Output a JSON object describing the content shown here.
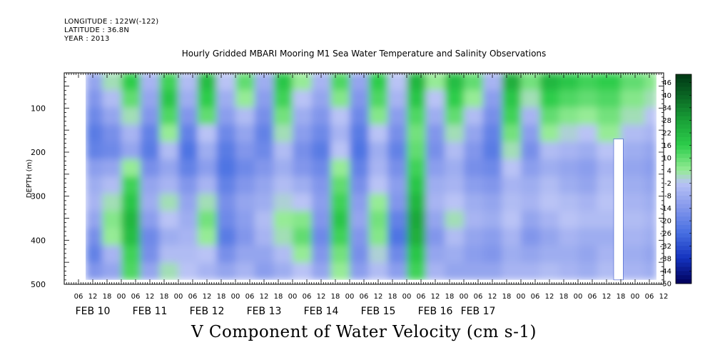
{
  "header": {
    "longitude": "LONGITUDE : 122W(-122)",
    "latitude": "LATITUDE : 36.8N",
    "year": "YEAR : 2013"
  },
  "chart_data": {
    "type": "heatmap",
    "title": "Hourly Gridded MBARI Mooring M1 Sea Water Temperature and Salinity Observations",
    "xlabel": "V Component of Water Velocity (cm s-1)",
    "ylabel": "DEPTH (m)",
    "y_reversed": true,
    "ylim": [
      500,
      20
    ],
    "y_ticks": [
      100,
      200,
      300,
      400,
      500
    ],
    "data_depth_range": [
      20,
      490
    ],
    "x_hours_range": [
      0,
      252
    ],
    "data_hours_range": [
      9,
      249
    ],
    "x_hour_ticks": [
      "06",
      "12",
      "18",
      "00",
      "06",
      "12",
      "18",
      "00",
      "06",
      "12",
      "18",
      "00",
      "06",
      "12",
      "18",
      "00",
      "06",
      "12",
      "18",
      "00",
      "06",
      "12",
      "18",
      "00",
      "06",
      "12",
      "18",
      "00",
      "06",
      "12",
      "18",
      "00",
      "06",
      "12",
      "18",
      "00",
      "06",
      "12",
      "18",
      "00",
      "06",
      "12"
    ],
    "x_day_labels": [
      "FEB 10",
      "FEB 11",
      "FEB 12",
      "FEB 13",
      "FEB 14",
      "FEB 15",
      "FEB 16",
      "FEB 17"
    ],
    "colorbar": {
      "labels": [
        "46",
        "40",
        "34",
        "28",
        "22",
        "16",
        "10",
        "4",
        "-2",
        "-8",
        "-14",
        "-20",
        "-26",
        "-32",
        "-38",
        "-44",
        "-50"
      ],
      "min": -50,
      "max": 50
    },
    "gaps": [
      {
        "type": "column",
        "hour_start": 231,
        "hour_end": 235,
        "depth_top": 170,
        "depth_bottom": 490
      }
    ],
    "columns": [
      {
        "hour": 12,
        "values": [
          -10,
          -14,
          -18,
          -22,
          -20,
          -12,
          -8,
          -6,
          -10,
          -16,
          -20,
          -14
        ]
      },
      {
        "hour": 20,
        "values": [
          2,
          -4,
          -10,
          -16,
          -18,
          -10,
          -4,
          2,
          6,
          4,
          -6,
          -10
        ]
      },
      {
        "hour": 28,
        "values": [
          16,
          10,
          2,
          -6,
          -10,
          4,
          14,
          18,
          22,
          20,
          14,
          12
        ]
      },
      {
        "hour": 36,
        "values": [
          -6,
          -10,
          -14,
          -20,
          -22,
          -16,
          -10,
          -8,
          -12,
          -18,
          -16,
          -10
        ]
      },
      {
        "hour": 44,
        "values": [
          14,
          18,
          12,
          4,
          -4,
          -10,
          -6,
          2,
          -2,
          -8,
          -4,
          2
        ]
      },
      {
        "hour": 52,
        "values": [
          -4,
          -8,
          -14,
          -20,
          -24,
          -20,
          -14,
          -10,
          -8,
          -6,
          -4,
          -2
        ]
      },
      {
        "hour": 60,
        "values": [
          20,
          16,
          10,
          -2,
          -8,
          -12,
          -6,
          2,
          8,
          4,
          -2,
          -6
        ]
      },
      {
        "hour": 68,
        "values": [
          -2,
          -8,
          -12,
          -18,
          -22,
          -24,
          -20,
          -16,
          -18,
          -22,
          -16,
          -10
        ]
      },
      {
        "hour": 76,
        "values": [
          10,
          4,
          -4,
          -10,
          -14,
          -18,
          -14,
          -10,
          -12,
          -14,
          -10,
          -6
        ]
      },
      {
        "hour": 84,
        "values": [
          -8,
          -12,
          -16,
          -20,
          -18,
          -14,
          -10,
          -8,
          -4,
          -6,
          -10,
          -12
        ]
      },
      {
        "hour": 92,
        "values": [
          18,
          14,
          8,
          2,
          -4,
          -8,
          -4,
          0,
          4,
          2,
          -4,
          -8
        ]
      },
      {
        "hour": 100,
        "values": [
          4,
          -2,
          -8,
          -12,
          -16,
          -14,
          -8,
          -2,
          6,
          10,
          4,
          -2
        ]
      },
      {
        "hour": 108,
        "values": [
          -6,
          -10,
          -14,
          -18,
          -22,
          -18,
          -14,
          -12,
          -14,
          -18,
          -14,
          -10
        ]
      },
      {
        "hour": 116,
        "values": [
          12,
          6,
          -2,
          -6,
          -2,
          4,
          10,
          14,
          18,
          14,
          8,
          4
        ]
      },
      {
        "hour": 124,
        "values": [
          -10,
          -14,
          -18,
          -22,
          -24,
          -20,
          -16,
          -12,
          -10,
          -14,
          -16,
          -12
        ]
      },
      {
        "hour": 132,
        "values": [
          16,
          12,
          6,
          -2,
          -8,
          -6,
          -2,
          4,
          8,
          6,
          0,
          -4
        ]
      },
      {
        "hour": 140,
        "values": [
          -2,
          -6,
          -12,
          -16,
          -20,
          -16,
          -12,
          -14,
          -20,
          -24,
          -18,
          -12
        ]
      },
      {
        "hour": 148,
        "values": [
          22,
          18,
          12,
          8,
          10,
          14,
          18,
          22,
          26,
          24,
          18,
          14
        ]
      },
      {
        "hour": 156,
        "values": [
          4,
          -2,
          -8,
          -14,
          -16,
          -12,
          -8,
          -6,
          -10,
          -14,
          -10,
          -6
        ]
      },
      {
        "hour": 164,
        "values": [
          20,
          16,
          10,
          2,
          -4,
          -8,
          -6,
          -2,
          2,
          -4,
          -8,
          -10
        ]
      },
      {
        "hour": 172,
        "values": [
          10,
          4,
          -4,
          -10,
          -14,
          -16,
          -12,
          -8,
          -6,
          -10,
          -12,
          -10
        ]
      },
      {
        "hour": 180,
        "values": [
          -6,
          -12,
          -16,
          -20,
          -22,
          -18,
          -14,
          -10,
          -8,
          -12,
          -14,
          -10
        ]
      },
      {
        "hour": 188,
        "values": [
          24,
          18,
          14,
          8,
          2,
          -2,
          -6,
          -4,
          -2,
          -6,
          -8,
          -6
        ]
      },
      {
        "hour": 196,
        "values": [
          8,
          2,
          -6,
          -12,
          -16,
          -12,
          -8,
          -6,
          -10,
          -14,
          -10,
          -6
        ]
      },
      {
        "hour": 204,
        "values": [
          22,
          16,
          10,
          4,
          -4,
          -8,
          -4,
          -2,
          -6,
          -10,
          -8,
          -4
        ]
      },
      {
        "hour": 212,
        "values": [
          18,
          12,
          6,
          0,
          -6,
          -10,
          -8,
          -4,
          -2,
          -6,
          -8,
          -6
        ]
      },
      {
        "hour": 220,
        "values": [
          14,
          10,
          4,
          -2,
          -8,
          -12,
          -10,
          -6,
          -4,
          -8,
          -10,
          -8
        ]
      },
      {
        "hour": 228,
        "values": [
          16,
          12,
          8,
          4,
          -2,
          -6,
          -4,
          -2,
          -4,
          -8,
          -6,
          -4
        ]
      },
      {
        "hour": 240,
        "values": [
          10,
          6,
          2,
          -4,
          -8,
          -10,
          -8,
          -6,
          -4,
          -6,
          -8,
          -6
        ]
      },
      {
        "hour": 248,
        "values": [
          6,
          2,
          -2,
          -6,
          -10,
          -12,
          -10,
          -8,
          -6,
          -8,
          -10,
          -8
        ]
      }
    ]
  }
}
